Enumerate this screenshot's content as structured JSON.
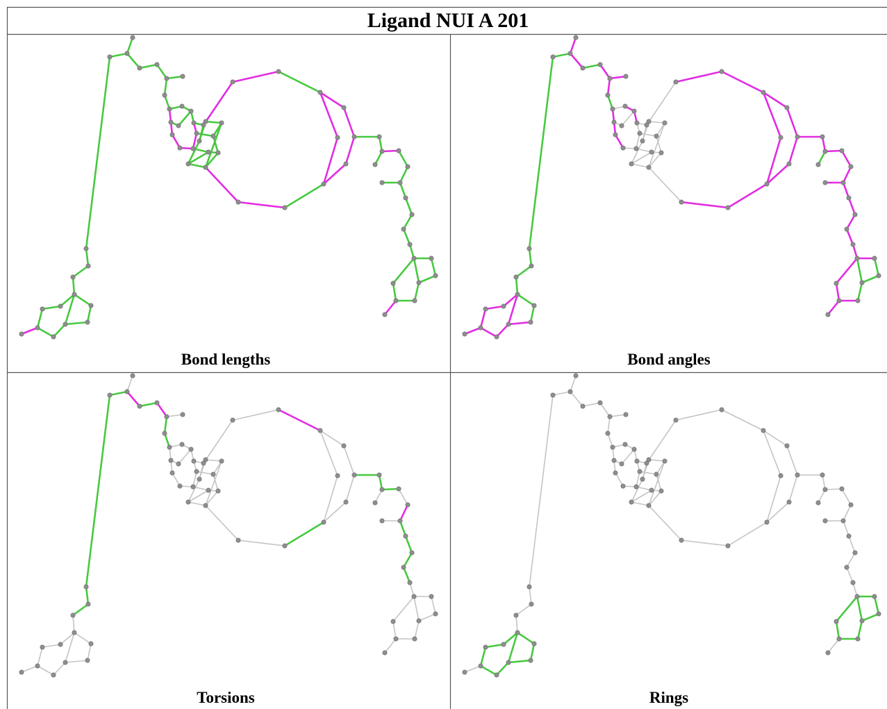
{
  "title": "Ligand NUI A 201",
  "colors": {
    "good": "#47c93f",
    "outlier": "#e22ce2",
    "neutral": "#c4c4c4",
    "atom": "#8e8e8e",
    "atom_edge": "#6e6e6e",
    "frame": "#555555"
  },
  "panels": [
    {
      "label": "Bond lengths",
      "mode": "lengths"
    },
    {
      "label": "Bond angles",
      "mode": "angles"
    },
    {
      "label": "Torsions",
      "mode": "torsions"
    },
    {
      "label": "Rings",
      "mode": "rings"
    }
  ]
}
